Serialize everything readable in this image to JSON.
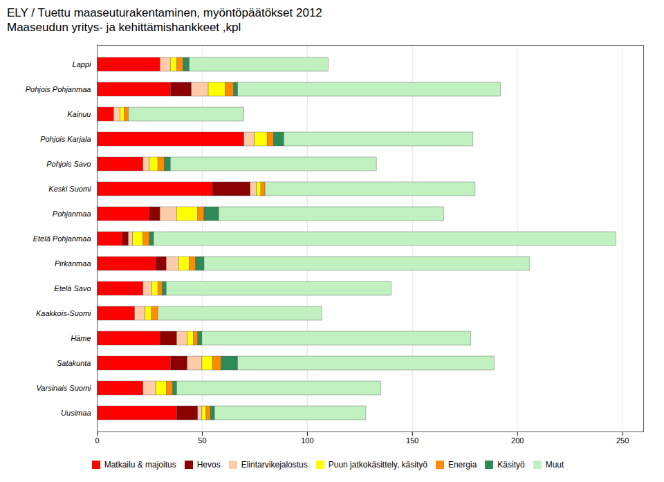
{
  "chart_data": {
    "type": "bar",
    "title": "ELY / Tuettu maaseuturakentaminen, myöntöpäätökset 2012\nMaaseudun yritys- ja kehittämishankkeet ,kpl",
    "orientation": "horizontal",
    "stacked": true,
    "categories": [
      "Lappi",
      "Pohjois Pohjanmaa",
      "Kainuu",
      "Pohjois Karjala",
      "Pohjois Savo",
      "Keski Suomi",
      "Pohjanmaa",
      "Etelä Pohjanmaa",
      "Pirkanmaa",
      "Etelä Savo",
      "Kaakkois-Suomi",
      "Häme",
      "Satakunta",
      "Varsinais Suomi",
      "Uusimaa"
    ],
    "series": [
      {
        "name": "Matkailu & majoitus",
        "color": "#FF0000",
        "values": [
          30,
          35,
          8,
          70,
          22,
          55,
          25,
          12,
          28,
          22,
          18,
          30,
          35,
          22,
          38
        ]
      },
      {
        "name": "Hevos",
        "color": "#8B0000",
        "values": [
          0,
          10,
          0,
          0,
          0,
          18,
          5,
          3,
          5,
          0,
          0,
          8,
          8,
          0,
          10
        ]
      },
      {
        "name": "Elintarvikejalostus",
        "color": "#FFCCAA",
        "values": [
          5,
          8,
          3,
          5,
          3,
          3,
          8,
          2,
          6,
          4,
          5,
          5,
          7,
          6,
          2
        ]
      },
      {
        "name": "Puun jatkokäsittely, käsityö",
        "color": "#FFFF00",
        "values": [
          3,
          8,
          2,
          6,
          4,
          2,
          10,
          5,
          5,
          3,
          3,
          3,
          5,
          5,
          2
        ]
      },
      {
        "name": "Energia",
        "color": "#FF8C00",
        "values": [
          3,
          4,
          2,
          3,
          3,
          2,
          3,
          3,
          3,
          2,
          3,
          2,
          4,
          3,
          2
        ]
      },
      {
        "name": "Käsityö",
        "color": "#2E8B57",
        "values": [
          3,
          2,
          0,
          5,
          3,
          0,
          7,
          2,
          4,
          2,
          0,
          2,
          8,
          2,
          2
        ]
      },
      {
        "name": "Muut",
        "color": "#C1F0C1",
        "values": [
          66,
          125,
          55,
          90,
          98,
          100,
          107,
          220,
          155,
          107,
          78,
          128,
          122,
          97,
          72
        ]
      }
    ],
    "xlim": [
      0,
      260
    ],
    "xticks": [
      0,
      50,
      100,
      150,
      200,
      250
    ],
    "grid": true,
    "legend": "bottom"
  }
}
